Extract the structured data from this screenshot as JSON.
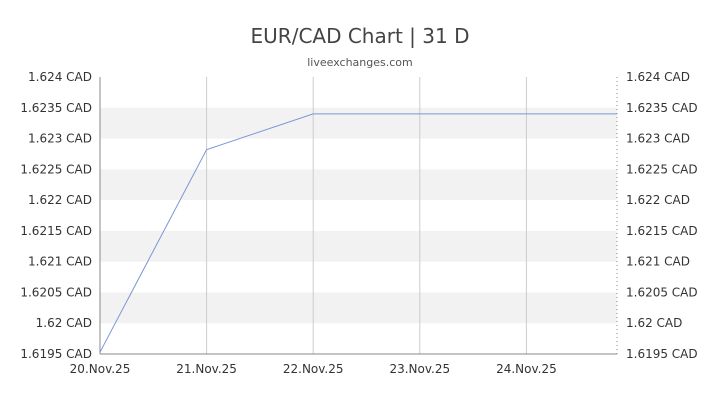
{
  "title": "EUR/CAD Chart | 31 D",
  "subtitle": "liveexchanges.com",
  "colors": {
    "line": "#7b96d6",
    "band": "#f2f2f2",
    "grid": "#cccccc",
    "axis": "#888888",
    "text": "#333333"
  },
  "chart_data": {
    "type": "line",
    "ylim": [
      1.6195,
      1.624
    ],
    "y_ticks": [
      1.624,
      1.6235,
      1.623,
      1.6225,
      1.622,
      1.6215,
      1.621,
      1.6205,
      1.62,
      1.6195
    ],
    "y_tick_labels": [
      "1.624 CAD",
      "1.6235 CAD",
      "1.623 CAD",
      "1.6225 CAD",
      "1.622 CAD",
      "1.6215 CAD",
      "1.621 CAD",
      "1.6205 CAD",
      "1.62 CAD",
      "1.6195 CAD"
    ],
    "x_tick_labels": [
      "20.Nov.25",
      "21.Nov.25",
      "22.Nov.25",
      "23.Nov.25",
      "24.Nov.25"
    ],
    "x": [
      "20.Nov.25",
      "21.Nov.25",
      "22.Nov.25",
      "23.Nov.25",
      "24.Nov.25",
      "25.Nov.25"
    ],
    "values": [
      1.61953,
      1.62282,
      1.6234,
      1.6234,
      1.6234,
      1.6234
    ],
    "grid": true,
    "legend": "none",
    "axes": "left and right"
  }
}
